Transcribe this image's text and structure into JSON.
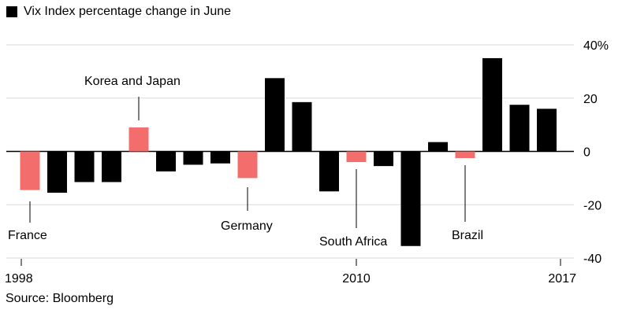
{
  "chart_data": {
    "type": "bar",
    "legend": {
      "label": "Vix Index percentage change in June",
      "color": "#000000",
      "placement": "top-left"
    },
    "x": [
      1998,
      1999,
      2000,
      2001,
      2002,
      2003,
      2004,
      2005,
      2006,
      2007,
      2008,
      2009,
      2010,
      2011,
      2012,
      2013,
      2014,
      2015,
      2016,
      2017
    ],
    "values": [
      -14.5,
      -15.5,
      -11.5,
      -11.5,
      9,
      -7.5,
      -5,
      -4.5,
      -10,
      27.5,
      18.5,
      -15,
      -4,
      -5.5,
      -35.5,
      3.5,
      -2.5,
      35,
      17.5,
      16
    ],
    "highlight_color": "#f46d6d",
    "base_color": "#000000",
    "highlighted": [
      {
        "x": 1998,
        "label": "France"
      },
      {
        "x": 2002,
        "label": "Korea and Japan"
      },
      {
        "x": 2006,
        "label": "Germany"
      },
      {
        "x": 2010,
        "label": "South Africa"
      },
      {
        "x": 2014,
        "label": "Brazil"
      }
    ],
    "ylim": [
      -40,
      40
    ],
    "yticks": [
      "40%",
      "20",
      "0",
      "-20",
      "-40"
    ],
    "ytick_values": [
      40,
      20,
      0,
      -20,
      -40
    ],
    "xticks": [
      "1998",
      "2010",
      "2017"
    ],
    "xtick_values": [
      1998,
      2010,
      2017
    ],
    "grid": true
  },
  "source": "Source: Bloomberg"
}
